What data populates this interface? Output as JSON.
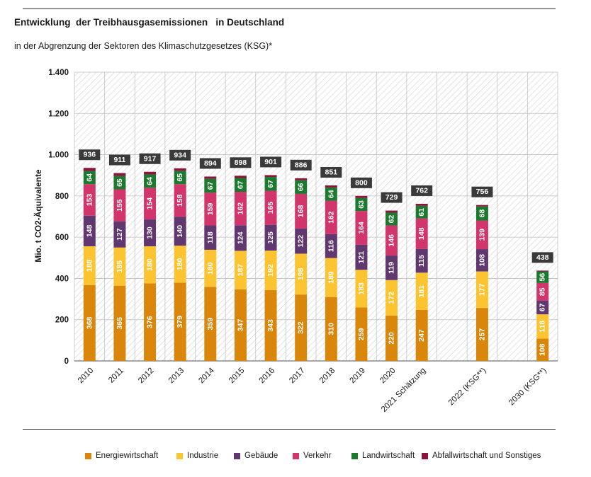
{
  "title": "Entwicklung  der Treibhausgasemissionen   in Deutschland",
  "subtitle": "in der Abgrenzung der Sektoren des Klimaschutzgesetzes (KSG)*",
  "chart_data": {
    "type": "bar",
    "stacked": true,
    "ylabel": "Mio. t CO2-Äquivalente",
    "ylim": [
      0,
      1400
    ],
    "yticks": [
      0,
      200,
      400,
      600,
      800,
      1000,
      1200,
      1400
    ],
    "ytick_labels": [
      "0",
      "200",
      "400",
      "600",
      "800",
      "1.000",
      "1.200",
      "1.400"
    ],
    "background_pattern": "diagonal hatching",
    "legend_position": "bottom",
    "categories": [
      "2010",
      "2011",
      "2012",
      "2013",
      "2014",
      "2015",
      "2016",
      "2017",
      "2018",
      "2019",
      "2020",
      "2021 Schätzung",
      "",
      "2022 (KSG**)",
      "",
      "2030 (KSG**)"
    ],
    "series": [
      {
        "name": "Energiewirtschaft",
        "color": "#d9860b",
        "values": [
          368,
          365,
          376,
          379,
          359,
          347,
          343,
          322,
          310,
          259,
          220,
          247,
          null,
          257,
          null,
          108
        ],
        "labels": [
          "368",
          "365",
          "376",
          "379",
          "359",
          "347",
          "343",
          "322",
          "310",
          "259",
          "220",
          "247",
          null,
          "257",
          null,
          "108"
        ]
      },
      {
        "name": "Industrie",
        "color": "#fdc431",
        "values": [
          188,
          185,
          180,
          180,
          180,
          187,
          192,
          198,
          189,
          183,
          172,
          181,
          null,
          177,
          null,
          118
        ],
        "labels": [
          "188",
          "185",
          "180",
          "180",
          "180",
          "187",
          "192",
          "198",
          "189",
          "183",
          "172",
          "181",
          null,
          "177",
          null,
          "118"
        ]
      },
      {
        "name": "Gebäude",
        "color": "#60376e",
        "values": [
          148,
          127,
          130,
          140,
          118,
          124,
          125,
          122,
          116,
          121,
          119,
          115,
          null,
          108,
          null,
          67
        ],
        "labels": [
          "148",
          "127",
          "130",
          "140",
          "118",
          "124",
          "125",
          "122",
          "116",
          "121",
          "119",
          "115",
          null,
          "108",
          null,
          "67"
        ]
      },
      {
        "name": "Verkehr",
        "color": "#d1356b",
        "values": [
          153,
          155,
          154,
          158,
          159,
          162,
          165,
          168,
          162,
          164,
          146,
          148,
          null,
          139,
          null,
          85
        ],
        "labels": [
          "153",
          "155",
          "154",
          "158",
          "159",
          "162",
          "165",
          "168",
          "162",
          "164",
          "146",
          "148",
          null,
          "139",
          null,
          "85"
        ]
      },
      {
        "name": "Landwirtschaft",
        "color": "#1c7a2e",
        "values": [
          64,
          65,
          64,
          65,
          67,
          67,
          67,
          66,
          64,
          63,
          62,
          61,
          null,
          68,
          null,
          56
        ],
        "labels": [
          "64",
          "65",
          "64",
          "65",
          "67",
          "67",
          "67",
          "66",
          "64",
          "63",
          "62",
          "61",
          null,
          "68",
          null,
          "56"
        ]
      },
      {
        "name": "Abfallwirtschaft und Sonstiges",
        "color": "#8a1640",
        "values": [
          15,
          14,
          13,
          12,
          11,
          11,
          9,
          10,
          10,
          10,
          10,
          10,
          null,
          7,
          null,
          4
        ],
        "labels": [
          null,
          null,
          null,
          null,
          null,
          null,
          null,
          null,
          null,
          null,
          null,
          null,
          null,
          null,
          null,
          null
        ]
      }
    ],
    "totals": [
      "936",
      "911",
      "917",
      "934",
      "894",
      "898",
      "901",
      "886",
      "851",
      "800",
      "729",
      "762",
      null,
      "756",
      null,
      "438"
    ]
  }
}
